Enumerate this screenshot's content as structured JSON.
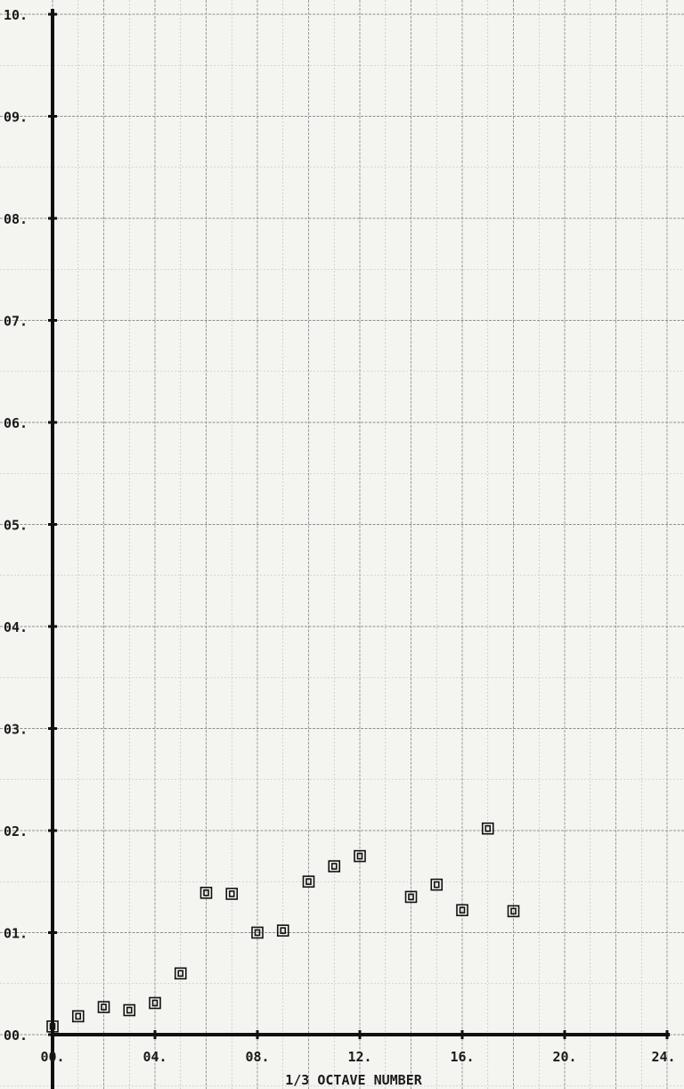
{
  "chart_data": {
    "type": "scatter",
    "title": "",
    "xlabel": "1/3 OCTAVE NUMBER",
    "ylabel": "",
    "xlim": [
      0,
      24
    ],
    "ylim": [
      0,
      10
    ],
    "x_ticks": [
      "00.",
      "04.",
      "08.",
      "12.",
      "16.",
      "20.",
      "24."
    ],
    "y_ticks": [
      "00.",
      "01.",
      "02.",
      "03.",
      "04.",
      "05.",
      "06.",
      "07.",
      "08.",
      "09.",
      "10."
    ],
    "grid": true,
    "marker": "square",
    "series": [
      {
        "x": [
          0,
          1,
          2,
          3,
          4,
          5,
          6,
          7,
          8,
          9,
          10,
          11,
          12,
          14,
          15,
          16,
          17,
          18
        ],
        "y": [
          0.08,
          0.18,
          0.27,
          0.24,
          0.31,
          0.6,
          1.39,
          1.38,
          1.0,
          1.02,
          1.5,
          1.65,
          1.75,
          1.35,
          1.47,
          1.22,
          2.02,
          1.21
        ]
      }
    ]
  }
}
